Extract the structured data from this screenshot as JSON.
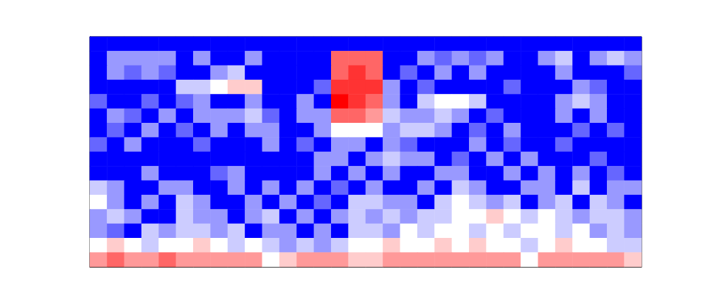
{
  "chart_data": {
    "type": "heatmap",
    "tick_labels": false,
    "color_range": [
      0,
      10
    ],
    "cells": [
      [
        0,
        0,
        0,
        0,
        0,
        0,
        0,
        0,
        0,
        0,
        0,
        0,
        0,
        0,
        0,
        0,
        0,
        0,
        0,
        0,
        0,
        0,
        0,
        0,
        0,
        0,
        0,
        0,
        0,
        0,
        0,
        0
      ],
      [
        0,
        3,
        3,
        3,
        3,
        0,
        3,
        0,
        0,
        3,
        0,
        0,
        0,
        0,
        8,
        8,
        8,
        0,
        0,
        3,
        2,
        3,
        2,
        3,
        0,
        0,
        3,
        4,
        0,
        3,
        4,
        3
      ],
      [
        0,
        3,
        2,
        3,
        2,
        0,
        0,
        3,
        4,
        0,
        0,
        0,
        0,
        0,
        8,
        9,
        8,
        0,
        2,
        0,
        3,
        0,
        3,
        0,
        0,
        0,
        0,
        3,
        0,
        0,
        0,
        2
      ],
      [
        0,
        0,
        0,
        0,
        0,
        4,
        4,
        5,
        6,
        6,
        0,
        0,
        0,
        2,
        9,
        9,
        9,
        3,
        0,
        2,
        0,
        0,
        0,
        0,
        2,
        0,
        0,
        0,
        3,
        2,
        0,
        0
      ],
      [
        2,
        0,
        0,
        2,
        0,
        2,
        3,
        0,
        0,
        3,
        0,
        0,
        3,
        0,
        10,
        9,
        8,
        3,
        0,
        4,
        5,
        5,
        4,
        0,
        0,
        0,
        0,
        3,
        4,
        3,
        0,
        0
      ],
      [
        0,
        3,
        2,
        0,
        3,
        0,
        3,
        3,
        3,
        4,
        2,
        0,
        3,
        3,
        8,
        8,
        7,
        4,
        3,
        3,
        4,
        3,
        0,
        2,
        0,
        0,
        0,
        3,
        0,
        3,
        0,
        0
      ],
      [
        0,
        2,
        0,
        3,
        0,
        2,
        0,
        3,
        0,
        3,
        3,
        0,
        0,
        3,
        5,
        5,
        5,
        3,
        4,
        4,
        3,
        0,
        2,
        0,
        3,
        0,
        0,
        0,
        2,
        0,
        2,
        0
      ],
      [
        2,
        0,
        3,
        0,
        0,
        0,
        2,
        0,
        0,
        0,
        3,
        0,
        2,
        0,
        3,
        3,
        0,
        3,
        2,
        0,
        0,
        0,
        3,
        0,
        2,
        0,
        0,
        2,
        0,
        0,
        0,
        0
      ],
      [
        0,
        0,
        0,
        0,
        0,
        0,
        0,
        0,
        0,
        0,
        0,
        0,
        0,
        3,
        3,
        0,
        3,
        4,
        3,
        3,
        0,
        2,
        0,
        3,
        0,
        3,
        0,
        0,
        0,
        2,
        0,
        0
      ],
      [
        0,
        0,
        0,
        3,
        0,
        0,
        0,
        2,
        3,
        0,
        0,
        0,
        0,
        3,
        0,
        3,
        0,
        3,
        0,
        0,
        3,
        3,
        0,
        0,
        3,
        0,
        3,
        0,
        3,
        0,
        2,
        0
      ],
      [
        4,
        3,
        0,
        0,
        3,
        3,
        0,
        0,
        3,
        0,
        3,
        0,
        3,
        0,
        2,
        0,
        3,
        0,
        0,
        3,
        0,
        4,
        3,
        0,
        0,
        3,
        3,
        0,
        4,
        0,
        3,
        3
      ],
      [
        5,
        3,
        0,
        3,
        0,
        4,
        3,
        0,
        0,
        3,
        0,
        3,
        0,
        2,
        0,
        4,
        4,
        3,
        3,
        0,
        4,
        5,
        4,
        3,
        4,
        0,
        3,
        4,
        0,
        4,
        3,
        0
      ],
      [
        3,
        4,
        3,
        0,
        0,
        4,
        3,
        3,
        0,
        3,
        4,
        0,
        3,
        0,
        3,
        4,
        3,
        4,
        3,
        4,
        4,
        5,
        5,
        6,
        5,
        4,
        5,
        4,
        3,
        4,
        4,
        3
      ],
      [
        3,
        2,
        0,
        4,
        3,
        4,
        4,
        3,
        4,
        0,
        3,
        3,
        0,
        3,
        0,
        4,
        4,
        3,
        5,
        4,
        5,
        5,
        4,
        5,
        4,
        5,
        5,
        4,
        5,
        3,
        4,
        3
      ],
      [
        5,
        6,
        5,
        4,
        5,
        5,
        6,
        5,
        4,
        5,
        4,
        3,
        4,
        3,
        4,
        5,
        5,
        6,
        5,
        5,
        6,
        5,
        6,
        5,
        5,
        4,
        5,
        6,
        5,
        5,
        4,
        4
      ],
      [
        7,
        8,
        7,
        7,
        8,
        7,
        7,
        7,
        7,
        7,
        5,
        6,
        7,
        7,
        7,
        6,
        6,
        7,
        7,
        7,
        7,
        7,
        7,
        7,
        7,
        5,
        7,
        7,
        7,
        7,
        7,
        6
      ]
    ]
  }
}
